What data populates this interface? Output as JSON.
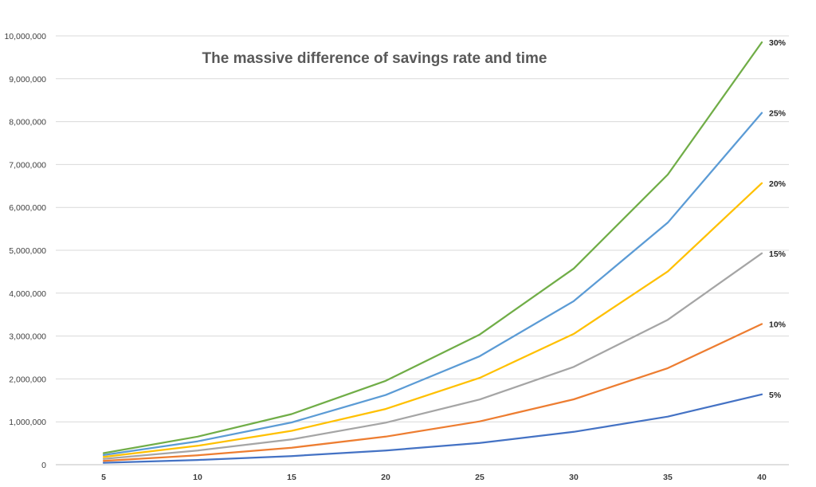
{
  "chart_data": {
    "type": "line",
    "title": "The massive difference of savings rate and time",
    "xlabel": "",
    "ylabel": "",
    "x": [
      5,
      10,
      15,
      20,
      25,
      30,
      35,
      40
    ],
    "x_tick_labels": [
      "5",
      "10",
      "15",
      "20",
      "25",
      "30",
      "35",
      "40"
    ],
    "ylim": [
      0,
      10000000
    ],
    "y_tick_labels": [
      "0",
      "1,000,000",
      "2,000,000",
      "3,000,000",
      "4,000,000",
      "5,000,000",
      "6,000,000",
      "7,000,000",
      "8,000,000",
      "9,000,000",
      "10,000,000"
    ],
    "y_ticks": [
      0,
      1000000,
      2000000,
      3000000,
      4000000,
      5000000,
      6000000,
      7000000,
      8000000,
      9000000,
      10000000
    ],
    "grid": true,
    "legend": "none",
    "series": [
      {
        "name": "5%",
        "color": "#4472C4",
        "values": [
          45000,
          110000,
          200000,
          330000,
          505000,
          765000,
          1120000,
          1640000
        ]
      },
      {
        "name": "10%",
        "color": "#ED7D31",
        "values": [
          90000,
          220000,
          395000,
          655000,
          1010000,
          1525000,
          2250000,
          3280000
        ]
      },
      {
        "name": "15%",
        "color": "#A5A5A5",
        "values": [
          135000,
          330000,
          590000,
          980000,
          1520000,
          2280000,
          3380000,
          4930000
        ]
      },
      {
        "name": "20%",
        "color": "#FFC000",
        "values": [
          180000,
          440000,
          790000,
          1300000,
          2025000,
          3050000,
          4505000,
          6565000
        ]
      },
      {
        "name": "25%",
        "color": "#5B9BD5",
        "values": [
          225000,
          545000,
          985000,
          1625000,
          2530000,
          3815000,
          5645000,
          8205000
        ]
      },
      {
        "name": "30%",
        "color": "#70AD47",
        "values": [
          270000,
          655000,
          1180000,
          1955000,
          3035000,
          4575000,
          6765000,
          9850000
        ]
      }
    ]
  }
}
